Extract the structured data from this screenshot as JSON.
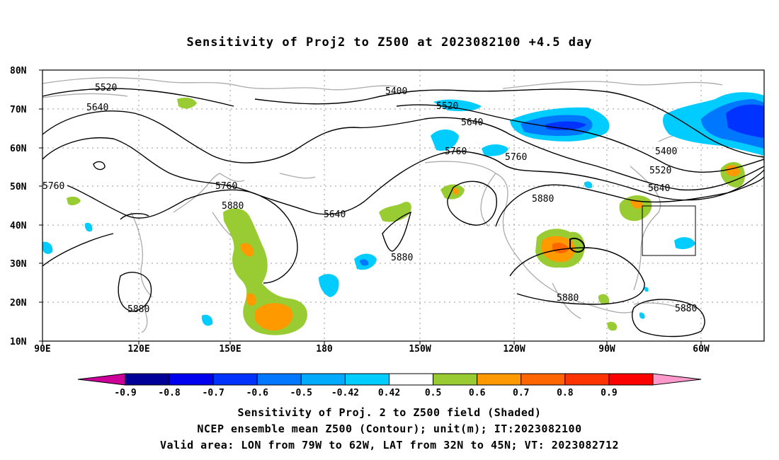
{
  "title": "Sensitivity of Proj2 to Z500 at 2023082100 +4.5 day",
  "axes": {
    "lat_labels": [
      "80N",
      "70N",
      "60N",
      "50N",
      "40N",
      "30N",
      "20N",
      "10N"
    ],
    "lon_labels": [
      "90E",
      "120E",
      "150E",
      "180",
      "150W",
      "120W",
      "90W",
      "60W"
    ]
  },
  "contours": {
    "levels": [
      5400,
      5520,
      5640,
      5760,
      5880
    ],
    "labels": [
      "5520",
      "5640",
      "5400",
      "5520",
      "5640",
      "5760",
      "5760",
      "5400",
      "5520",
      "5640",
      "5760",
      "5880",
      "5640",
      "5880",
      "5880",
      "5880",
      "5880",
      "5880",
      "5760"
    ]
  },
  "shading": {
    "positive_color_1": "#99cc33",
    "positive_color_2": "#ff9900",
    "positive_color_3": "#ff6600",
    "negative_color_1": "#00ccff",
    "negative_color_2": "#0077ff",
    "negative_color_3": "#0033ff"
  },
  "colorbar": {
    "labels": [
      "-0.9",
      "-0.8",
      "-0.7",
      "-0.6",
      "-0.5",
      "-0.42",
      "0.42",
      "0.5",
      "0.6",
      "0.7",
      "0.8",
      "0.9"
    ],
    "colors": [
      "#000099",
      "#0000ee",
      "#0033ff",
      "#0077ff",
      "#00aaff",
      "#00ccff",
      "#ffffff",
      "#99cc33",
      "#ff9900",
      "#ff6600",
      "#ff3300",
      "#ff0000"
    ],
    "low_arrow_color": "#cc0099",
    "high_arrow_color": "#ff99cc"
  },
  "captions": [
    "Sensitivity of Proj. 2 to Z500 field (Shaded)",
    "NCEP ensemble mean Z500 (Contour); unit(m); IT:2023082100",
    "Valid area: LON from 79W to 62W, LAT from 32N to 45N; VT: 2023082712"
  ]
}
